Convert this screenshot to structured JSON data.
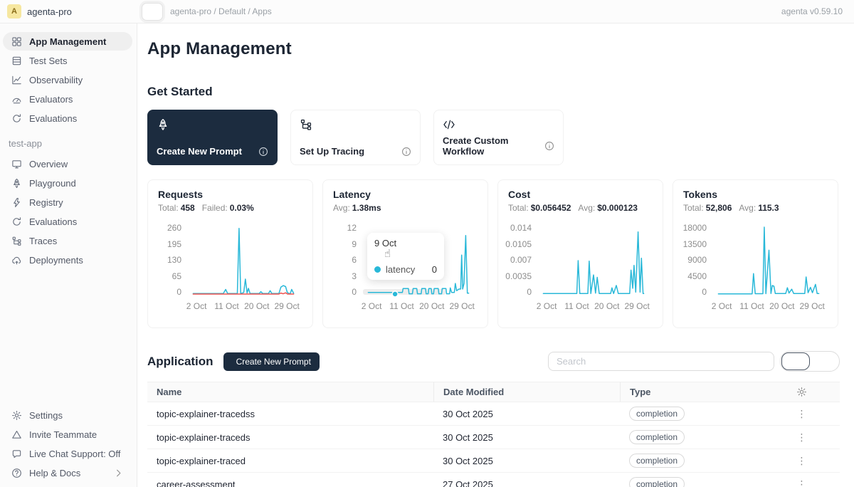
{
  "topbar": {
    "workspace": {
      "avatar_letter": "A",
      "name": "agenta-pro"
    },
    "breadcrumb": "agenta-pro / Default / Apps",
    "version_label": "agenta v0.59.10"
  },
  "sidebar": {
    "main_items": [
      {
        "label": "App Management",
        "icon": "grid-icon",
        "active": true
      },
      {
        "label": "Test Sets",
        "icon": "table-icon",
        "active": false
      },
      {
        "label": "Observability",
        "icon": "chart-line-icon",
        "active": false
      },
      {
        "label": "Evaluators",
        "icon": "gauge-icon",
        "active": false
      },
      {
        "label": "Evaluations",
        "icon": "refresh-icon",
        "active": false
      }
    ],
    "group_label": "test-app",
    "app_items": [
      {
        "label": "Overview",
        "icon": "monitor-icon"
      },
      {
        "label": "Playground",
        "icon": "rocket-icon"
      },
      {
        "label": "Registry",
        "icon": "bolt-icon"
      },
      {
        "label": "Evaluations",
        "icon": "refresh-icon"
      },
      {
        "label": "Traces",
        "icon": "tree-icon"
      },
      {
        "label": "Deployments",
        "icon": "cloud-icon"
      }
    ],
    "bottom_items": [
      {
        "label": "Settings",
        "icon": "gear-icon"
      },
      {
        "label": "Invite Teammate",
        "icon": "triangle-icon"
      },
      {
        "label": "Live Chat Support: Off",
        "icon": "chat-icon"
      },
      {
        "label": "Help & Docs",
        "icon": "help-icon",
        "trailing_icon": "chevron-right-icon"
      }
    ]
  },
  "main": {
    "page_title": "App Management",
    "get_started": {
      "title": "Get Started",
      "cards": [
        {
          "label": "Create New Prompt",
          "icon": "rocket-icon",
          "variant": "dark"
        },
        {
          "label": "Set Up Tracing",
          "icon": "tree-icon",
          "variant": "light"
        },
        {
          "label": "Create Custom Workflow",
          "icon": "code-icon",
          "variant": "light"
        }
      ]
    },
    "application": {
      "title": "Application",
      "create_button_label": "Create New Prompt",
      "search_placeholder": "Search",
      "table": {
        "columns": [
          "Name",
          "Date Modified",
          "Type"
        ],
        "rows": [
          {
            "name": "topic-explainer-tracedss",
            "date_modified": "30 Oct 2025",
            "type": "completion"
          },
          {
            "name": "topic-explainer-traceds",
            "date_modified": "30 Oct 2025",
            "type": "completion"
          },
          {
            "name": "topic-explainer-traced",
            "date_modified": "30 Oct 2025",
            "type": "completion"
          },
          {
            "name": "career-assessment",
            "date_modified": "27 Oct 2025",
            "type": "completion"
          }
        ]
      }
    }
  },
  "colors": {
    "accent_dark": "#1c2c3f",
    "chart_line": "#29b8d8",
    "chart_fail": "#ef5350"
  },
  "chart_data": [
    {
      "type": "line",
      "title": "Requests",
      "stats": [
        {
          "label": "Total:",
          "value": "458"
        },
        {
          "label": "Failed:",
          "value": "0.03%"
        }
      ],
      "ylim": [
        0,
        260
      ],
      "yticks": [
        "260",
        "195",
        "130",
        "65",
        "0"
      ],
      "xticks": [
        {
          "day": 2,
          "label": "2 Oct"
        },
        {
          "day": 11,
          "label": "11 Oct"
        },
        {
          "day": 20,
          "label": "20 Oct"
        },
        {
          "day": 29,
          "label": "29 Oct"
        }
      ],
      "series": [
        {
          "name": "requests",
          "color": "#29b8d8",
          "points": [
            [
              1,
              2
            ],
            [
              10,
              2
            ],
            [
              10.7,
              18
            ],
            [
              11.3,
              2
            ],
            [
              14.2,
              2
            ],
            [
              14.7,
              255
            ],
            [
              15.2,
              2
            ],
            [
              16.1,
              6
            ],
            [
              16.6,
              58
            ],
            [
              17.1,
              4
            ],
            [
              17.5,
              22
            ],
            [
              18,
              2
            ],
            [
              20.7,
              2
            ],
            [
              21.2,
              9
            ],
            [
              21.8,
              2
            ],
            [
              23.5,
              2
            ],
            [
              24,
              13
            ],
            [
              24.5,
              2
            ],
            [
              26.6,
              2
            ],
            [
              27.2,
              27
            ],
            [
              27.9,
              33
            ],
            [
              28.6,
              29
            ],
            [
              29.1,
              7
            ],
            [
              29.6,
              2
            ],
            [
              30,
              2
            ],
            [
              30.4,
              18
            ],
            [
              31,
              3
            ]
          ]
        },
        {
          "name": "failed",
          "color": "#ef5350",
          "points": [
            [
              1,
              0
            ],
            [
              26.6,
              0
            ],
            [
              27.2,
              4
            ],
            [
              27.9,
              1
            ],
            [
              28.6,
              5
            ],
            [
              29.2,
              0
            ],
            [
              31,
              0
            ]
          ]
        }
      ]
    },
    {
      "type": "line",
      "title": "Latency",
      "stats": [
        {
          "label": "Avg:",
          "value": "1.38ms"
        }
      ],
      "ylim": [
        0,
        12
      ],
      "yticks": [
        "12",
        "9",
        "6",
        "3",
        "0"
      ],
      "xticks": [
        {
          "day": 2,
          "label": "2 Oct"
        },
        {
          "day": 11,
          "label": "11 Oct"
        },
        {
          "day": 20,
          "label": "20 Oct"
        },
        {
          "day": 29,
          "label": "29 Oct"
        }
      ],
      "hover_band": true,
      "highlight_point": [
        9,
        0
      ],
      "tooltip": {
        "date": "9 Oct",
        "series": "latency",
        "value": "0"
      },
      "series": [
        {
          "name": "latency",
          "color": "#29b8d8",
          "points": [
            [
              1,
              0.3
            ],
            [
              8.7,
              0.3
            ],
            [
              9,
              0.05
            ],
            [
              9.4,
              0.3
            ],
            [
              11.2,
              0.3
            ],
            [
              11.4,
              1
            ],
            [
              13,
              1
            ],
            [
              13.2,
              0.05
            ],
            [
              14.2,
              0.05
            ],
            [
              14.4,
              1
            ],
            [
              15.5,
              1
            ],
            [
              15.7,
              0.05
            ],
            [
              16.8,
              0.05
            ],
            [
              17,
              1
            ],
            [
              18.1,
              1
            ],
            [
              18.3,
              0.05
            ],
            [
              18.9,
              0.05
            ],
            [
              19.1,
              1
            ],
            [
              19.8,
              1
            ],
            [
              20,
              0.05
            ],
            [
              20.5,
              0.05
            ],
            [
              20.7,
              1
            ],
            [
              21.9,
              1
            ],
            [
              22.1,
              0.05
            ],
            [
              22.9,
              0.05
            ],
            [
              23.1,
              1
            ],
            [
              24.2,
              1
            ],
            [
              24.4,
              0.05
            ],
            [
              25.3,
              0.05
            ],
            [
              25.5,
              1.1
            ],
            [
              25.9,
              0.3
            ],
            [
              26.7,
              0.3
            ],
            [
              27,
              1.9
            ],
            [
              27.4,
              0.6
            ],
            [
              28.1,
              0.9
            ],
            [
              28.6,
              0.9
            ],
            [
              28.9,
              7
            ],
            [
              29.2,
              0.9
            ],
            [
              29.6,
              1.9
            ],
            [
              30.1,
              10.5
            ],
            [
              30.6,
              0.15
            ],
            [
              31,
              0.15
            ]
          ]
        }
      ]
    },
    {
      "type": "line",
      "title": "Cost",
      "stats": [
        {
          "label": "Total:",
          "value": "$0.056452"
        },
        {
          "label": "Avg:",
          "value": "$0.000123"
        }
      ],
      "ylim": [
        0,
        0.014
      ],
      "yticks": [
        "0.014",
        "0.0105",
        "0.007",
        "0.0035",
        "0"
      ],
      "xticks": [
        {
          "day": 2,
          "label": "2 Oct"
        },
        {
          "day": 11,
          "label": "11 Oct"
        },
        {
          "day": 20,
          "label": "20 Oct"
        },
        {
          "day": 29,
          "label": "29 Oct"
        }
      ],
      "series": [
        {
          "name": "cost",
          "color": "#29b8d8",
          "points": [
            [
              1,
              0.0001
            ],
            [
              11,
              0.0001
            ],
            [
              11.4,
              0.007
            ],
            [
              11.9,
              0.0001
            ],
            [
              14.3,
              0.0001
            ],
            [
              14.7,
              0.0069
            ],
            [
              15.2,
              0.0001
            ],
            [
              16,
              0.004
            ],
            [
              16.6,
              0.0002
            ],
            [
              17.1,
              0.0035
            ],
            [
              17.7,
              0.0001
            ],
            [
              21.1,
              0.0001
            ],
            [
              21.5,
              0.0013
            ],
            [
              22,
              0.0001
            ],
            [
              22.8,
              0.0018
            ],
            [
              23.4,
              0.0001
            ],
            [
              26.8,
              0.0001
            ],
            [
              27.2,
              0.005
            ],
            [
              27.7,
              0.0012
            ],
            [
              28.1,
              0.006
            ],
            [
              28.6,
              0.0004
            ],
            [
              29.3,
              0.013
            ],
            [
              29.9,
              0.0004
            ],
            [
              30.3,
              0.0075
            ],
            [
              30.8,
              0.0001
            ],
            [
              31,
              0.0001
            ]
          ]
        }
      ]
    },
    {
      "type": "line",
      "title": "Tokens",
      "stats": [
        {
          "label": "Total:",
          "value": "52,806"
        },
        {
          "label": "Avg:",
          "value": "115.3"
        }
      ],
      "ylim": [
        0,
        18000
      ],
      "yticks": [
        "18000",
        "13500",
        "9000",
        "4500",
        "0"
      ],
      "xticks": [
        {
          "day": 2,
          "label": "2 Oct"
        },
        {
          "day": 11,
          "label": "11 Oct"
        },
        {
          "day": 20,
          "label": "20 Oct"
        },
        {
          "day": 29,
          "label": "29 Oct"
        }
      ],
      "series": [
        {
          "name": "tokens",
          "color": "#29b8d8",
          "points": [
            [
              1,
              60
            ],
            [
              11.1,
              60
            ],
            [
              11.5,
              5500
            ],
            [
              12,
              90
            ],
            [
              14.3,
              90
            ],
            [
              14.7,
              18000
            ],
            [
              15.2,
              90
            ],
            [
              16.1,
              11800
            ],
            [
              16.7,
              160
            ],
            [
              17.1,
              2300
            ],
            [
              17.6,
              2100
            ],
            [
              18,
              130
            ],
            [
              21.1,
              130
            ],
            [
              21.6,
              1700
            ],
            [
              22.1,
              260
            ],
            [
              22.9,
              1300
            ],
            [
              23.5,
              130
            ],
            [
              26.8,
              130
            ],
            [
              27.2,
              4600
            ],
            [
              27.8,
              360
            ],
            [
              28.5,
              1800
            ],
            [
              29.1,
              360
            ],
            [
              30,
              2600
            ],
            [
              30.5,
              160
            ],
            [
              31,
              160
            ]
          ]
        }
      ]
    }
  ]
}
